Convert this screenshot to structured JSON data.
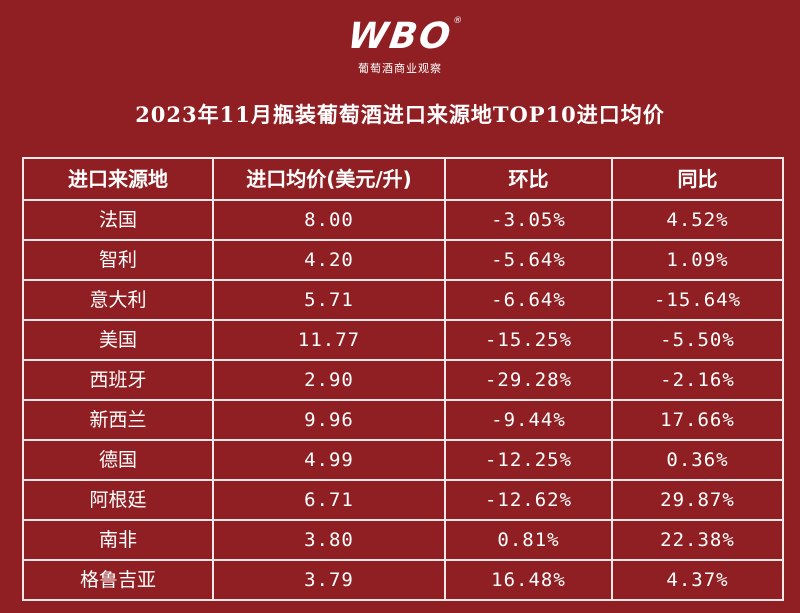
{
  "brand": {
    "logo_text": "WBO",
    "registered_mark": "®",
    "tagline": "葡萄酒商业观察"
  },
  "title": "2023年11月瓶装葡萄酒进口来源地TOP10进口均价",
  "chart_data": {
    "type": "table",
    "title": "2023年11月瓶装葡萄酒进口来源地TOP10进口均价",
    "columns": [
      "进口来源地",
      "进口均价(美元/升)",
      "环比",
      "同比"
    ],
    "rows": [
      [
        "法国",
        "8.00",
        "-3.05%",
        "4.52%"
      ],
      [
        "智利",
        "4.20",
        "-5.64%",
        "1.09%"
      ],
      [
        "意大利",
        "5.71",
        "-6.64%",
        "-15.64%"
      ],
      [
        "美国",
        "11.77",
        "-15.25%",
        "-5.50%"
      ],
      [
        "西班牙",
        "2.90",
        "-29.28%",
        "-2.16%"
      ],
      [
        "新西兰",
        "9.96",
        "-9.44%",
        "17.66%"
      ],
      [
        "德国",
        "4.99",
        "-12.25%",
        "0.36%"
      ],
      [
        "阿根廷",
        "6.71",
        "-12.62%",
        "29.87%"
      ],
      [
        "南非",
        "3.80",
        "0.81%",
        "22.38%"
      ],
      [
        "格鲁吉亚",
        "3.79",
        "16.48%",
        "4.37%"
      ]
    ]
  }
}
